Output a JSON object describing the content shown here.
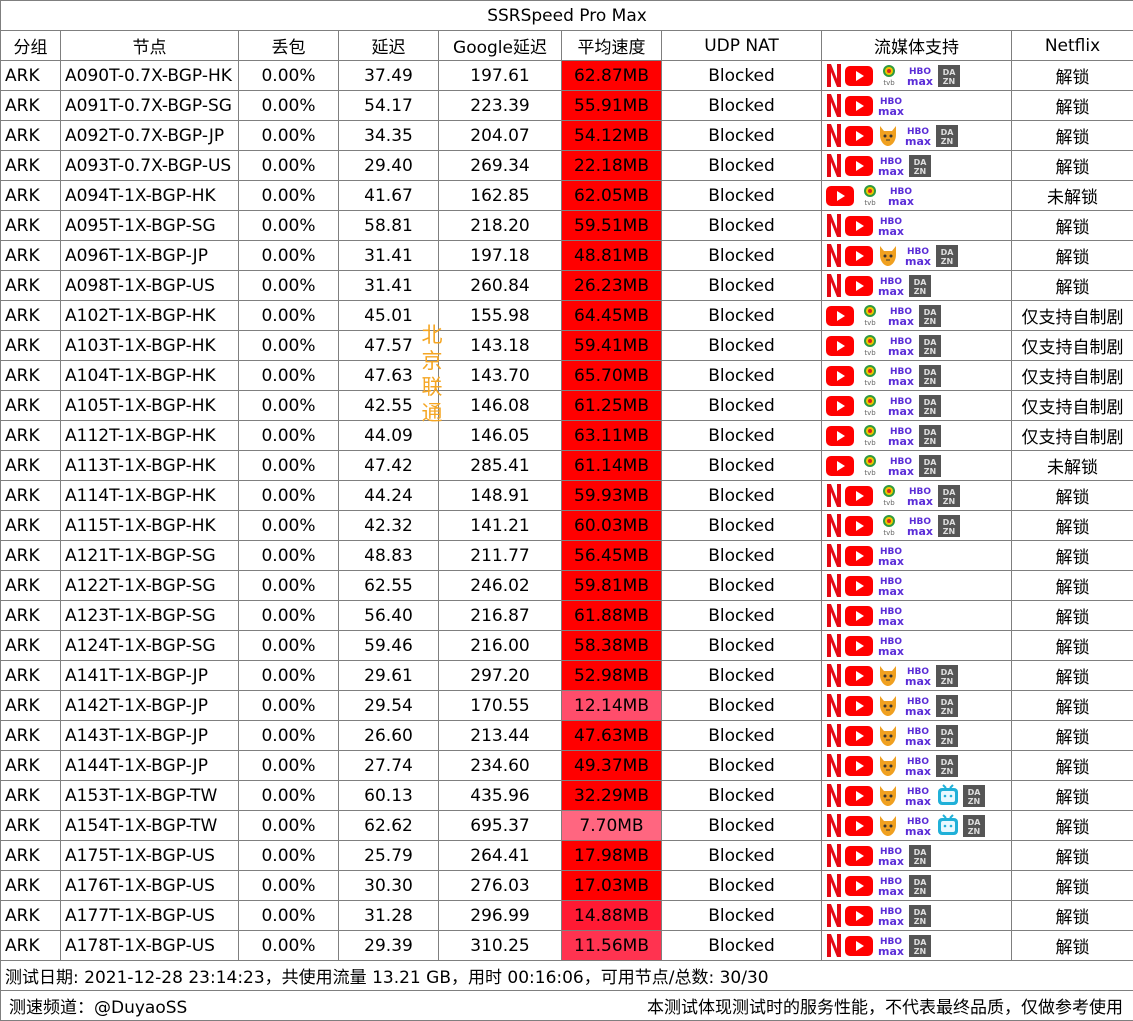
{
  "title": "SSRSpeed Pro Max",
  "headers": [
    "分组",
    "节点",
    "丢包",
    "延迟",
    "Google延迟",
    "平均速度",
    "UDP NAT",
    "流媒体支持",
    "Netflix"
  ],
  "rows": [
    {
      "group": "ARK",
      "node": "A090T-0.7X-BGP-HK",
      "loss": "0.00%",
      "latency": "37.49",
      "google": "197.61",
      "speed": "62.87MB",
      "speed_color": "#ff0000",
      "nat": "Blocked",
      "media": [
        "netflix",
        "youtube",
        "tvb",
        "hbomax",
        "dazn"
      ],
      "netflix": "解锁"
    },
    {
      "group": "ARK",
      "node": "A091T-0.7X-BGP-SG",
      "loss": "0.00%",
      "latency": "54.17",
      "google": "223.39",
      "speed": "55.91MB",
      "speed_color": "#ff0000",
      "nat": "Blocked",
      "media": [
        "netflix",
        "youtube",
        "hbomax"
      ],
      "netflix": "解锁"
    },
    {
      "group": "ARK",
      "node": "A092T-0.7X-BGP-JP",
      "loss": "0.00%",
      "latency": "34.35",
      "google": "204.07",
      "speed": "54.12MB",
      "speed_color": "#ff0000",
      "nat": "Blocked",
      "media": [
        "netflix",
        "youtube",
        "abema",
        "hbomax",
        "dazn"
      ],
      "netflix": "解锁"
    },
    {
      "group": "ARK",
      "node": "A093T-0.7X-BGP-US",
      "loss": "0.00%",
      "latency": "29.40",
      "google": "269.34",
      "speed": "22.18MB",
      "speed_color": "#ff0000",
      "nat": "Blocked",
      "media": [
        "netflix",
        "youtube",
        "hbomax",
        "dazn"
      ],
      "netflix": "解锁"
    },
    {
      "group": "ARK",
      "node": "A094T-1X-BGP-HK",
      "loss": "0.00%",
      "latency": "41.67",
      "google": "162.85",
      "speed": "62.05MB",
      "speed_color": "#ff0000",
      "nat": "Blocked",
      "media": [
        "youtube",
        "tvb",
        "hbomax"
      ],
      "netflix": "未解锁"
    },
    {
      "group": "ARK",
      "node": "A095T-1X-BGP-SG",
      "loss": "0.00%",
      "latency": "58.81",
      "google": "218.20",
      "speed": "59.51MB",
      "speed_color": "#ff0000",
      "nat": "Blocked",
      "media": [
        "netflix",
        "youtube",
        "hbomax"
      ],
      "netflix": "解锁"
    },
    {
      "group": "ARK",
      "node": "A096T-1X-BGP-JP",
      "loss": "0.00%",
      "latency": "31.41",
      "google": "197.18",
      "speed": "48.81MB",
      "speed_color": "#ff0000",
      "nat": "Blocked",
      "media": [
        "netflix",
        "youtube",
        "abema",
        "hbomax",
        "dazn"
      ],
      "netflix": "解锁"
    },
    {
      "group": "ARK",
      "node": "A098T-1X-BGP-US",
      "loss": "0.00%",
      "latency": "31.41",
      "google": "260.84",
      "speed": "26.23MB",
      "speed_color": "#ff0000",
      "nat": "Blocked",
      "media": [
        "netflix",
        "youtube",
        "hbomax",
        "dazn"
      ],
      "netflix": "解锁"
    },
    {
      "group": "ARK",
      "node": "A102T-1X-BGP-HK",
      "loss": "0.00%",
      "latency": "45.01",
      "google": "155.98",
      "speed": "64.45MB",
      "speed_color": "#ff0000",
      "nat": "Blocked",
      "media": [
        "youtube",
        "tvb",
        "hbomax",
        "dazn"
      ],
      "netflix": "仅支持自制剧"
    },
    {
      "group": "ARK",
      "node": "A103T-1X-BGP-HK",
      "loss": "0.00%",
      "latency": "47.57",
      "google": "143.18",
      "speed": "59.41MB",
      "speed_color": "#ff0000",
      "nat": "Blocked",
      "media": [
        "youtube",
        "tvb",
        "hbomax",
        "dazn"
      ],
      "netflix": "仅支持自制剧"
    },
    {
      "group": "ARK",
      "node": "A104T-1X-BGP-HK",
      "loss": "0.00%",
      "latency": "47.63",
      "google": "143.70",
      "speed": "65.70MB",
      "speed_color": "#ff0000",
      "nat": "Blocked",
      "media": [
        "youtube",
        "tvb",
        "hbomax",
        "dazn"
      ],
      "netflix": "仅支持自制剧"
    },
    {
      "group": "ARK",
      "node": "A105T-1X-BGP-HK",
      "loss": "0.00%",
      "latency": "42.55",
      "google": "146.08",
      "speed": "61.25MB",
      "speed_color": "#ff0000",
      "nat": "Blocked",
      "media": [
        "youtube",
        "tvb",
        "hbomax",
        "dazn"
      ],
      "netflix": "仅支持自制剧"
    },
    {
      "group": "ARK",
      "node": "A112T-1X-BGP-HK",
      "loss": "0.00%",
      "latency": "44.09",
      "google": "146.05",
      "speed": "63.11MB",
      "speed_color": "#ff0000",
      "nat": "Blocked",
      "media": [
        "youtube",
        "tvb",
        "hbomax",
        "dazn"
      ],
      "netflix": "仅支持自制剧"
    },
    {
      "group": "ARK",
      "node": "A113T-1X-BGP-HK",
      "loss": "0.00%",
      "latency": "47.42",
      "google": "285.41",
      "speed": "61.14MB",
      "speed_color": "#ff0000",
      "nat": "Blocked",
      "media": [
        "youtube",
        "tvb",
        "hbomax",
        "dazn"
      ],
      "netflix": "未解锁"
    },
    {
      "group": "ARK",
      "node": "A114T-1X-BGP-HK",
      "loss": "0.00%",
      "latency": "44.24",
      "google": "148.91",
      "speed": "59.93MB",
      "speed_color": "#ff0000",
      "nat": "Blocked",
      "media": [
        "netflix",
        "youtube",
        "tvb",
        "hbomax",
        "dazn"
      ],
      "netflix": "解锁"
    },
    {
      "group": "ARK",
      "node": "A115T-1X-BGP-HK",
      "loss": "0.00%",
      "latency": "42.32",
      "google": "141.21",
      "speed": "60.03MB",
      "speed_color": "#ff0000",
      "nat": "Blocked",
      "media": [
        "netflix",
        "youtube",
        "tvb",
        "hbomax",
        "dazn"
      ],
      "netflix": "解锁"
    },
    {
      "group": "ARK",
      "node": "A121T-1X-BGP-SG",
      "loss": "0.00%",
      "latency": "48.83",
      "google": "211.77",
      "speed": "56.45MB",
      "speed_color": "#ff0000",
      "nat": "Blocked",
      "media": [
        "netflix",
        "youtube",
        "hbomax"
      ],
      "netflix": "解锁"
    },
    {
      "group": "ARK",
      "node": "A122T-1X-BGP-SG",
      "loss": "0.00%",
      "latency": "62.55",
      "google": "246.02",
      "speed": "59.81MB",
      "speed_color": "#ff0000",
      "nat": "Blocked",
      "media": [
        "netflix",
        "youtube",
        "hbomax"
      ],
      "netflix": "解锁"
    },
    {
      "group": "ARK",
      "node": "A123T-1X-BGP-SG",
      "loss": "0.00%",
      "latency": "56.40",
      "google": "216.87",
      "speed": "61.88MB",
      "speed_color": "#ff0000",
      "nat": "Blocked",
      "media": [
        "netflix",
        "youtube",
        "hbomax"
      ],
      "netflix": "解锁"
    },
    {
      "group": "ARK",
      "node": "A124T-1X-BGP-SG",
      "loss": "0.00%",
      "latency": "59.46",
      "google": "216.00",
      "speed": "58.38MB",
      "speed_color": "#ff0000",
      "nat": "Blocked",
      "media": [
        "netflix",
        "youtube",
        "hbomax"
      ],
      "netflix": "解锁"
    },
    {
      "group": "ARK",
      "node": "A141T-1X-BGP-JP",
      "loss": "0.00%",
      "latency": "29.61",
      "google": "297.20",
      "speed": "52.98MB",
      "speed_color": "#ff0000",
      "nat": "Blocked",
      "media": [
        "netflix",
        "youtube",
        "abema",
        "hbomax",
        "dazn"
      ],
      "netflix": "解锁"
    },
    {
      "group": "ARK",
      "node": "A142T-1X-BGP-JP",
      "loss": "0.00%",
      "latency": "29.54",
      "google": "170.55",
      "speed": "12.14MB",
      "speed_color": "#ff4d6b",
      "nat": "Blocked",
      "media": [
        "netflix",
        "youtube",
        "abema",
        "hbomax",
        "dazn"
      ],
      "netflix": "解锁"
    },
    {
      "group": "ARK",
      "node": "A143T-1X-BGP-JP",
      "loss": "0.00%",
      "latency": "26.60",
      "google": "213.44",
      "speed": "47.63MB",
      "speed_color": "#ff0000",
      "nat": "Blocked",
      "media": [
        "netflix",
        "youtube",
        "abema",
        "hbomax",
        "dazn"
      ],
      "netflix": "解锁"
    },
    {
      "group": "ARK",
      "node": "A144T-1X-BGP-JP",
      "loss": "0.00%",
      "latency": "27.74",
      "google": "234.60",
      "speed": "49.37MB",
      "speed_color": "#ff0000",
      "nat": "Blocked",
      "media": [
        "netflix",
        "youtube",
        "abema",
        "hbomax",
        "dazn"
      ],
      "netflix": "解锁"
    },
    {
      "group": "ARK",
      "node": "A153T-1X-BGP-TW",
      "loss": "0.00%",
      "latency": "60.13",
      "google": "435.96",
      "speed": "32.29MB",
      "speed_color": "#ff0000",
      "nat": "Blocked",
      "media": [
        "netflix",
        "youtube",
        "abema",
        "hbomax",
        "bilibili",
        "dazn"
      ],
      "netflix": "解锁"
    },
    {
      "group": "ARK",
      "node": "A154T-1X-BGP-TW",
      "loss": "0.00%",
      "latency": "62.62",
      "google": "695.37",
      "speed": "7.70MB",
      "speed_color": "#ff6680",
      "nat": "Blocked",
      "media": [
        "netflix",
        "youtube",
        "abema",
        "hbomax",
        "bilibili",
        "dazn"
      ],
      "netflix": "解锁"
    },
    {
      "group": "ARK",
      "node": "A175T-1X-BGP-US",
      "loss": "0.00%",
      "latency": "25.79",
      "google": "264.41",
      "speed": "17.98MB",
      "speed_color": "#ff0000",
      "nat": "Blocked",
      "media": [
        "netflix",
        "youtube",
        "hbomax",
        "dazn"
      ],
      "netflix": "解锁"
    },
    {
      "group": "ARK",
      "node": "A176T-1X-BGP-US",
      "loss": "0.00%",
      "latency": "30.30",
      "google": "276.03",
      "speed": "17.03MB",
      "speed_color": "#ff0000",
      "nat": "Blocked",
      "media": [
        "netflix",
        "youtube",
        "hbomax",
        "dazn"
      ],
      "netflix": "解锁"
    },
    {
      "group": "ARK",
      "node": "A177T-1X-BGP-US",
      "loss": "0.00%",
      "latency": "31.28",
      "google": "296.99",
      "speed": "14.88MB",
      "speed_color": "#ff1a33",
      "nat": "Blocked",
      "media": [
        "netflix",
        "youtube",
        "hbomax",
        "dazn"
      ],
      "netflix": "解锁"
    },
    {
      "group": "ARK",
      "node": "A178T-1X-BGP-US",
      "loss": "0.00%",
      "latency": "29.39",
      "google": "310.25",
      "speed": "11.56MB",
      "speed_color": "#ff3350",
      "nat": "Blocked",
      "media": [
        "netflix",
        "youtube",
        "hbomax",
        "dazn"
      ],
      "netflix": "解锁"
    }
  ],
  "watermark": [
    "北",
    "京",
    "联",
    "通"
  ],
  "footer": {
    "stats": "测试日期: 2021-12-28 23:14:23，共使用流量 13.21 GB，用时 00:16:06，可用节点/总数: 30/30",
    "channel": "测速频道：@DuyaoSS",
    "disclaimer": "本测试体现测试时的服务性能，不代表最终品质，仅做参考使用"
  },
  "colors": {
    "border": "#7f7f7f",
    "speed_high": "#ff0000",
    "watermark": "#f5a623"
  }
}
